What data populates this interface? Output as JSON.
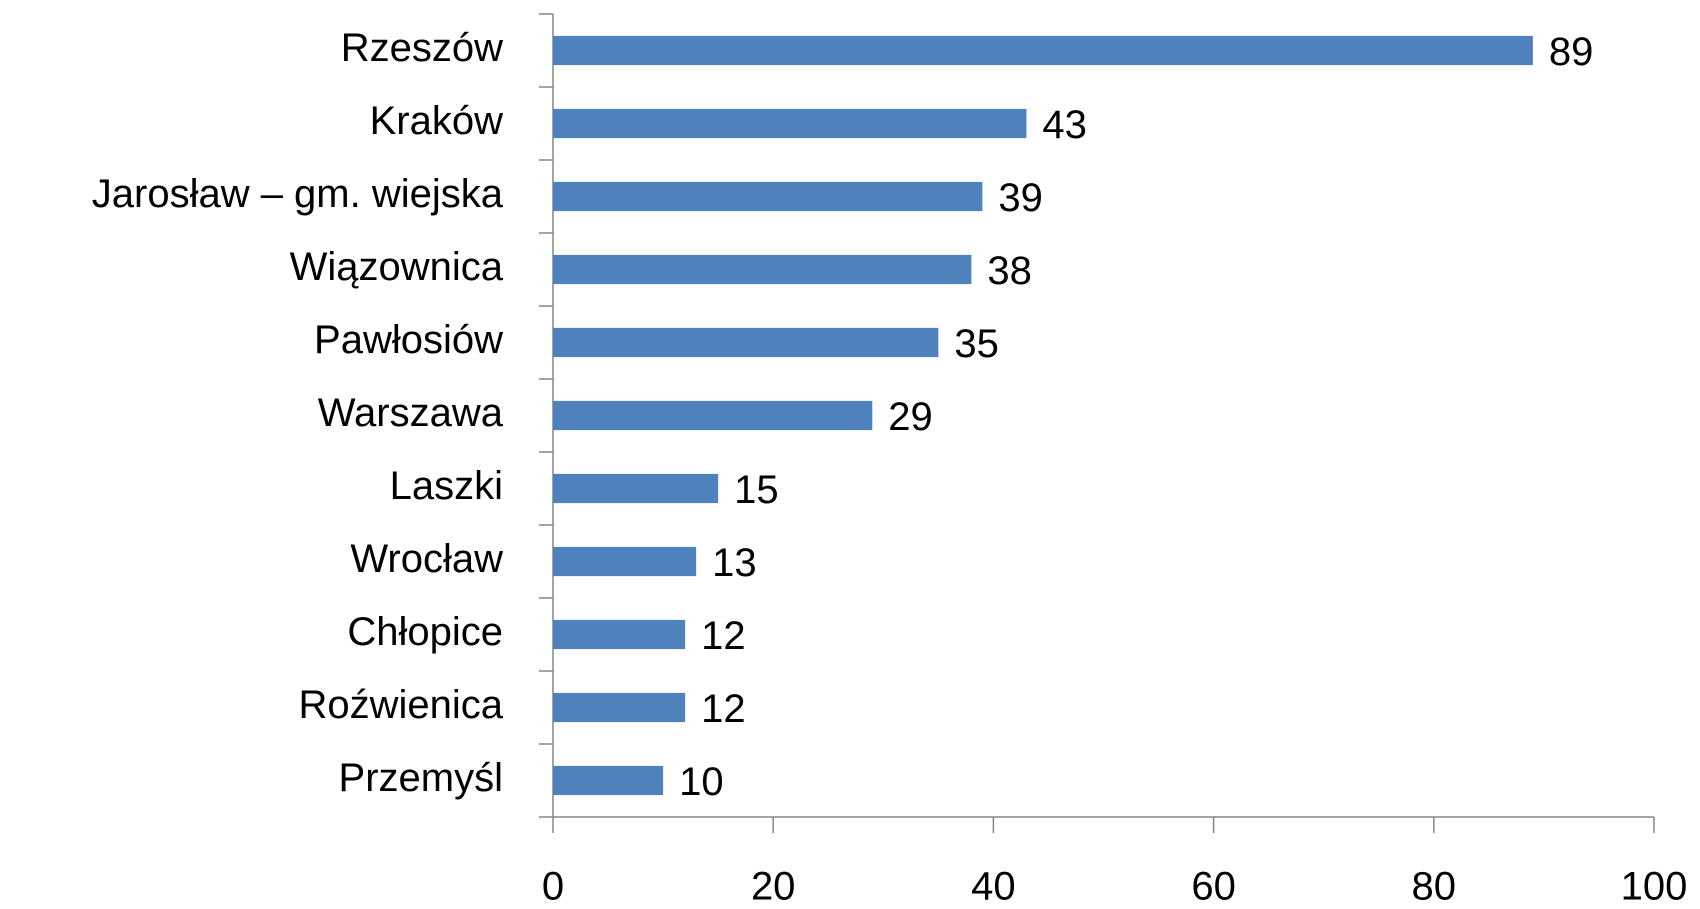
{
  "chart_data": {
    "type": "bar",
    "orientation": "horizontal",
    "categories": [
      "Rzeszów",
      "Kraków",
      "Jarosław – gm. wiejska",
      "Wiązownica",
      "Pawłosiów",
      "Warszawa",
      "Laszki",
      "Wrocław",
      "Chłopice",
      "Roźwienica",
      "Przemyśl"
    ],
    "values": [
      89,
      43,
      39,
      38,
      35,
      29,
      15,
      13,
      12,
      12,
      10
    ],
    "color": "#4f81bd",
    "xlim": [
      0,
      100
    ],
    "xticks": [
      0,
      20,
      40,
      60,
      80,
      100
    ],
    "grid": false
  }
}
